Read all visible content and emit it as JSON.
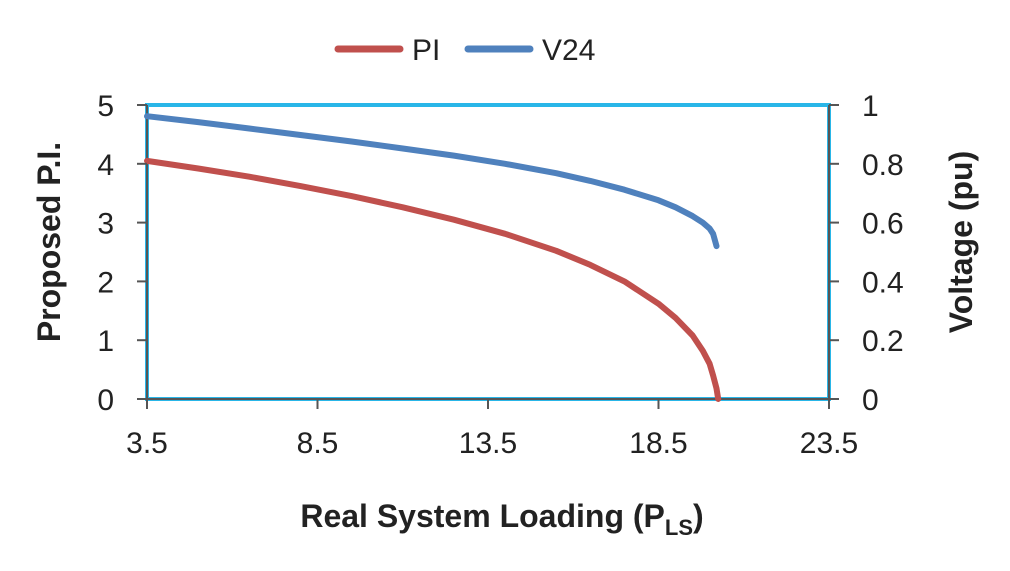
{
  "chart_data": {
    "type": "line",
    "xlabel_main": "Real System Loading (P",
    "xlabel_sub": "LS",
    "xlabel_close": ")",
    "ylabel_left": "Proposed P.I.",
    "ylabel_right": "Voltage (pu)",
    "xlim": [
      3.5,
      23.5
    ],
    "ylim_left": [
      0,
      5
    ],
    "ylim_right": [
      0,
      1
    ],
    "x_ticks": [
      "3.5",
      "8.5",
      "13.5",
      "18.5",
      "23.5"
    ],
    "y_left_ticks": [
      "0",
      "1",
      "2",
      "3",
      "4",
      "5"
    ],
    "y_right_ticks": [
      "0",
      "0.2",
      "0.4",
      "0.6",
      "0.8",
      "1"
    ],
    "legend_position": "top-center",
    "frame_color": "#29b6e8",
    "series": [
      {
        "name": "PI",
        "axis": "left",
        "color": "#c0504d",
        "x": [
          3.5,
          5,
          6.5,
          8,
          9.5,
          11,
          12.5,
          14,
          15.5,
          16.5,
          17.5,
          18.5,
          19,
          19.5,
          19.8,
          20.0,
          20.1,
          20.2,
          20.25
        ],
        "y": [
          4.05,
          3.92,
          3.78,
          3.62,
          3.45,
          3.26,
          3.05,
          2.81,
          2.52,
          2.28,
          2.0,
          1.62,
          1.38,
          1.08,
          0.82,
          0.6,
          0.4,
          0.18,
          0.0
        ]
      },
      {
        "name": "V24",
        "axis": "right",
        "color": "#4f81bd",
        "x": [
          3.5,
          5,
          6.5,
          8,
          9.5,
          11,
          12.5,
          14,
          15.5,
          16.5,
          17.5,
          18.5,
          19,
          19.5,
          19.8,
          20.0,
          20.1,
          20.2
        ],
        "y": [
          0.962,
          0.942,
          0.92,
          0.898,
          0.876,
          0.852,
          0.828,
          0.8,
          0.768,
          0.742,
          0.712,
          0.676,
          0.652,
          0.622,
          0.6,
          0.58,
          0.562,
          0.52
        ]
      }
    ]
  }
}
